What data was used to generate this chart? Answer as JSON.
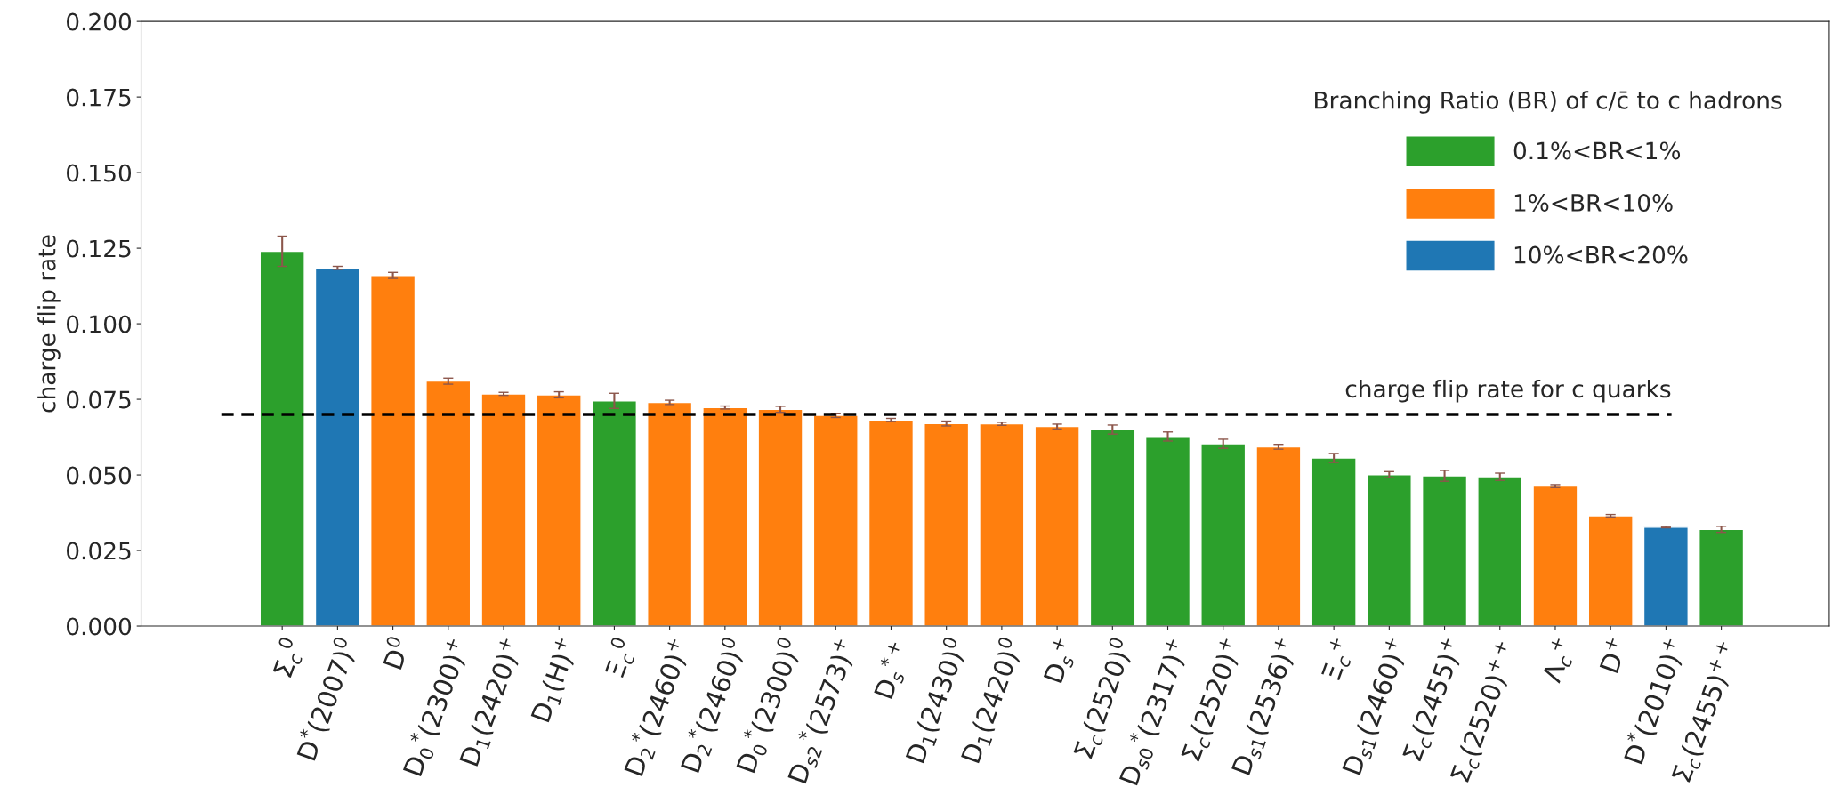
{
  "chart_data": {
    "type": "bar",
    "ylabel": "charge flip rate",
    "legend_title": "Branching Ratio (BR) of c/c̄ to c hadrons",
    "categories": [
      "Σ$_{c}$$^{0}$",
      "D$^{*}$(2007)$^{0}$",
      "D$^{0}$",
      "D$_{0}$$^{*}$(2300)$^{+}$",
      "D$_{1}$(2420)$^{+}$",
      "D$_{1}$(H)$^{+}$",
      "Ξ$_{c}$$^{0}$",
      "D$_{2}$$^{*}$(2460)$^{+}$",
      "D$_{2}$$^{*}$(2460)$^{0}$",
      "D$_{0}$$^{*}$(2300)$^{0}$",
      "D$_{s2}$$^{*}$(2573)$^{+}$",
      "D$_{s}$$^{*+}$",
      "D$_{1}$(2430)$^{0}$",
      "D$_{1}$(2420)$^{0}$",
      "D$_{s}$$^{+}$",
      "Σ$_{c}$(2520)$^{0}$",
      "D$_{s0}$$^{*}$(2317)$^{+}$",
      "Σ$_{c}$(2520)$^{+}$",
      "D$_{s1}$(2536)$^{+}$",
      "Ξ$_{c}$$^{+}$",
      "D$_{s1}$(2460)$^{+}$",
      "Σ$_{c}$(2455)$^{+}$",
      "Σ$_{c}$(2520)$^{++}$",
      "Λ$_{c}$$^{+}$",
      "D$^{+}$",
      "D$^{*}$(2010)$^{+}$",
      "Σ$_{c}$(2455)$^{++}$"
    ],
    "series": [
      {
        "name": "0.1%<BR<1%",
        "color": "#2ca02c",
        "values": [
          0.124,
          null,
          null,
          null,
          null,
          null,
          0.0745,
          null,
          null,
          null,
          null,
          null,
          null,
          null,
          null,
          0.065,
          0.0627,
          0.0603,
          null,
          0.0556,
          0.0501,
          0.0497,
          0.0494,
          null,
          null,
          null,
          0.032
        ],
        "errors": [
          0.005,
          null,
          null,
          null,
          null,
          null,
          0.0025,
          null,
          null,
          null,
          null,
          null,
          null,
          null,
          null,
          0.0015,
          0.0015,
          0.0015,
          null,
          0.0015,
          0.001,
          0.0018,
          0.0012,
          null,
          null,
          null,
          0.001
        ]
      },
      {
        "name": "1%<BR<10%",
        "color": "#ff7f0e",
        "values": [
          null,
          null,
          0.116,
          0.081,
          0.0768,
          0.0765,
          null,
          0.074,
          0.0723,
          0.0717,
          0.0697,
          0.0682,
          0.067,
          0.0669,
          0.066,
          null,
          null,
          null,
          0.0593,
          null,
          null,
          null,
          null,
          0.0463,
          0.0365,
          null,
          null
        ],
        "errors": [
          null,
          null,
          0.001,
          0.001,
          0.0005,
          0.001,
          null,
          0.0007,
          0.0005,
          0.001,
          0.0007,
          0.0005,
          0.0008,
          0.0005,
          0.0008,
          null,
          null,
          null,
          0.0008,
          null,
          null,
          null,
          null,
          0.0005,
          0.0004,
          null,
          null
        ]
      },
      {
        "name": "10%<BR<20%",
        "color": "#1f77b4",
        "values": [
          null,
          0.1185,
          null,
          null,
          null,
          null,
          null,
          null,
          null,
          null,
          null,
          null,
          null,
          null,
          null,
          null,
          null,
          null,
          null,
          null,
          null,
          null,
          null,
          null,
          null,
          0.0327,
          null
        ],
        "errors": [
          null,
          0.0005,
          null,
          null,
          null,
          null,
          null,
          null,
          null,
          null,
          null,
          null,
          null,
          null,
          null,
          null,
          null,
          null,
          null,
          null,
          null,
          null,
          null,
          null,
          null,
          0.0002,
          null
        ]
      }
    ],
    "ylim": [
      0,
      0.2
    ],
    "yticks": [
      {
        "value": 0,
        "label": "0.000"
      },
      {
        "value": 0.025,
        "label": "0.025"
      },
      {
        "value": 0.05,
        "label": "0.050"
      },
      {
        "value": 0.075,
        "label": "0.075"
      },
      {
        "value": 0.1,
        "label": "0.100"
      },
      {
        "value": 0.125,
        "label": "0.125"
      },
      {
        "value": 0.15,
        "label": "0.150"
      },
      {
        "value": 0.175,
        "label": "0.175"
      },
      {
        "value": 0.2,
        "label": "0.200"
      }
    ],
    "ref_lines": [
      {
        "axis": "y",
        "value": 0.07,
        "label": "charge flip rate for c quarks",
        "color": "#000000",
        "line_style": "dashed"
      }
    ],
    "grid": false,
    "legend": "top right"
  }
}
